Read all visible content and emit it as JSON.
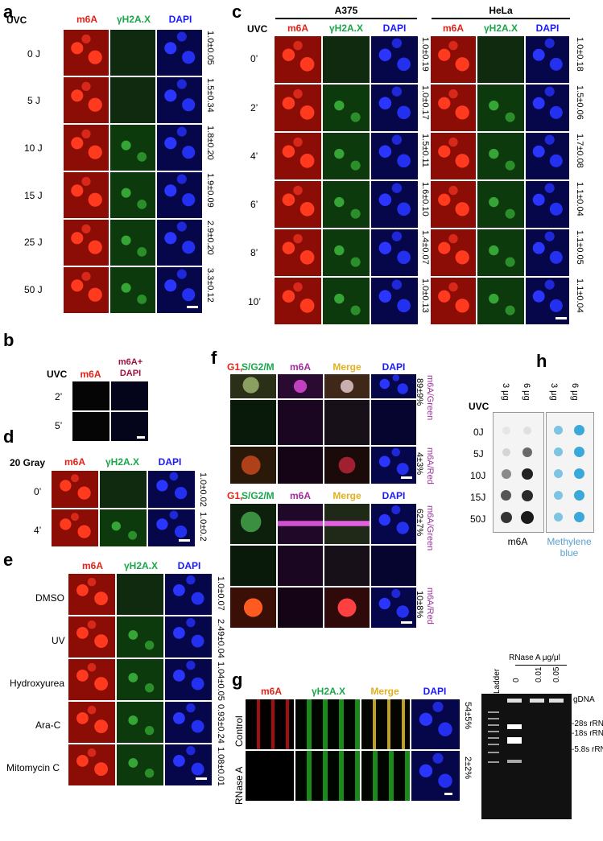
{
  "panels": {
    "a": {
      "letter": "a",
      "treatment_label": "UVC",
      "columns": [
        "m6A",
        "γH2A.X",
        "DAPI"
      ],
      "rows": [
        "0 J",
        "5 J",
        "10 J",
        "15 J",
        "25 J",
        "50 J"
      ],
      "values": [
        "1.0±0.05",
        "1.5±0.34",
        "1.8±0.20",
        "1.9±0.09",
        "2.9±0.20",
        "3.3±0.12"
      ]
    },
    "b": {
      "letter": "b",
      "treatment_label": "UVC",
      "columns": [
        "m6A",
        "m6A+ DAPI"
      ],
      "rows": [
        "2’",
        "5’"
      ]
    },
    "c": {
      "letter": "c",
      "cell_lines": [
        "A375",
        "HeLa"
      ],
      "treatment_label": "UVC",
      "columns": [
        "m6A",
        "γH2A.X",
        "DAPI"
      ],
      "rows": [
        "0’",
        "2’",
        "4’",
        "6’",
        "8’",
        "10’"
      ],
      "values_a375": [
        "1.0±0.19",
        "1.0±0.17",
        "1.5±0.11",
        "1.6±0.10",
        "1.4±0.07",
        "1.0±0.13"
      ],
      "values_hela": [
        "1.0±0.18",
        "1.5±0.06",
        "1.7±0.08",
        "1.1±0.04",
        "1.1±0.05",
        "1.1±0.04"
      ]
    },
    "d": {
      "letter": "d",
      "treatment_label": "20 Gray",
      "columns": [
        "m6A",
        "γH2A.X",
        "DAPI"
      ],
      "rows": [
        "0’",
        "4’"
      ],
      "values": [
        "1.0±0.02",
        "1.0±0.2"
      ]
    },
    "e": {
      "letter": "e",
      "columns": [
        "m6A",
        "γH2A.X",
        "DAPI"
      ],
      "rows": [
        "DMSO",
        "UV",
        "Hydroxyurea",
        "Ara-C",
        "Mitomycin C"
      ],
      "values": [
        "1.0±0.07",
        "2.49±0.04",
        "1.04±0.05",
        "0.93±0.24",
        "1.08±0.01"
      ]
    },
    "f": {
      "letter": "f",
      "columns": [
        "G1,S/G2/M",
        "m6A",
        "Merge",
        "DAPI"
      ],
      "col_g1": "G1,",
      "col_sg2m": "S/G2/M",
      "block1_values": [
        "89±9%",
        "4±3%"
      ],
      "block2_values": [
        "62±7%",
        "10±8%"
      ],
      "ratio_green": "m6A/Green",
      "ratio_red": "m6A/Red"
    },
    "g": {
      "letter": "g",
      "columns": [
        "m6A",
        "γH2A.X",
        "Merge",
        "DAPI"
      ],
      "rows": [
        "Control",
        "RNase A"
      ],
      "values": [
        "54±5%",
        "2±2%"
      ],
      "gel_title": "RNase A μg/μl",
      "gel_lanes": [
        "Ladder",
        "0",
        "0.01",
        "0.05"
      ],
      "gel_bands": [
        "gDNA",
        "-28s rRNA",
        "-18s rRNA",
        "-5.8s rRNA"
      ]
    },
    "h": {
      "letter": "h",
      "treatment_label": "UVC",
      "amounts": [
        "3 μg",
        "6 μg",
        "3 μg",
        "6 μg"
      ],
      "rows": [
        "0J",
        "5J",
        "10J",
        "15J",
        "50J"
      ],
      "stains": [
        "m6A",
        "Methylene blue"
      ],
      "stain_mb_line1": "Methylene",
      "stain_mb_line2": "blue"
    }
  },
  "colors": {
    "m6A": "#e2231a",
    "gH2AX": "#1aa64a",
    "DAPI": "#1a1aff",
    "merge": "#e0b020",
    "magenta": "#a030a0",
    "methylene": "#5aa0d0"
  }
}
